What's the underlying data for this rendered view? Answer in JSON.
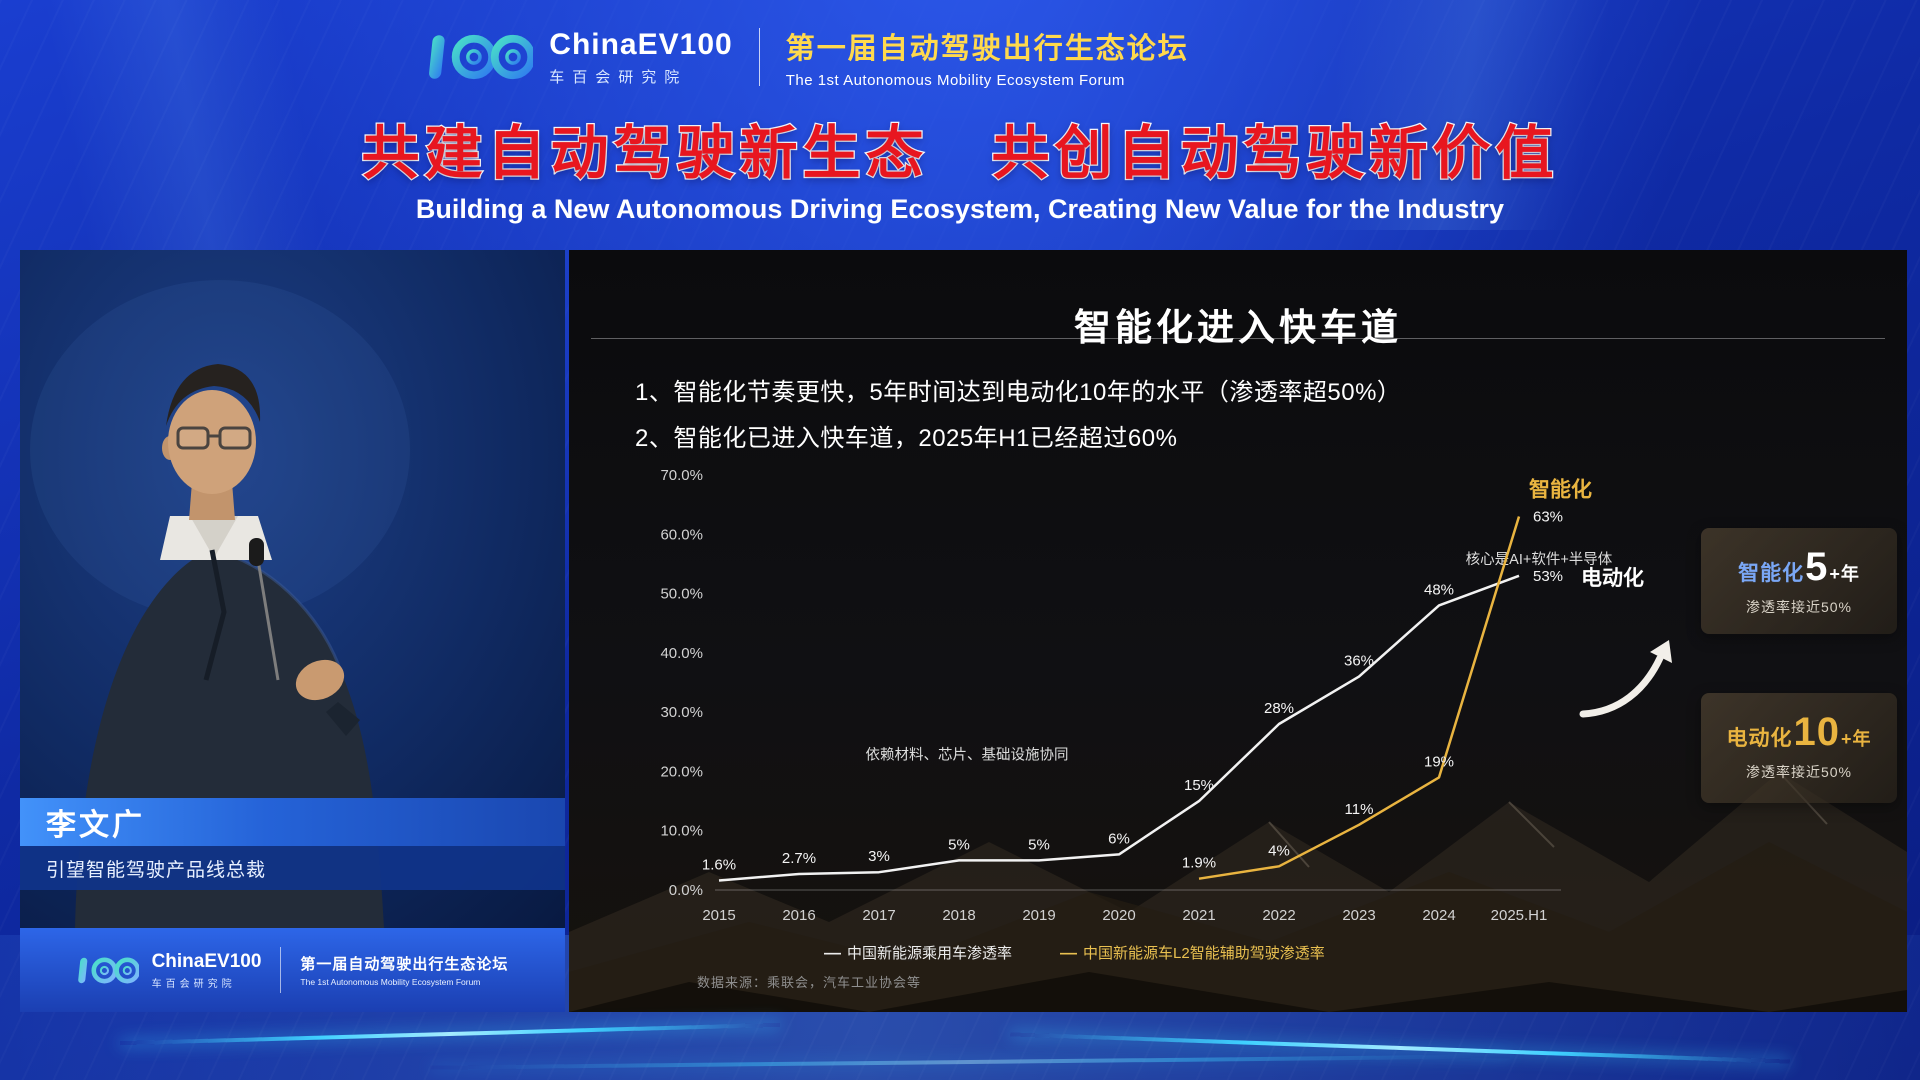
{
  "colors": {
    "title-red": "#e8161f",
    "forum-yellow": "#ffd94d",
    "ev-line": "#f2f2f2",
    "intelligent-line": "#e9b440"
  },
  "header": {
    "brand": "ChinaEV100",
    "brand_sub": "车百会研究院",
    "forum_cn": "第一届自动驾驶出行生态论坛",
    "forum_en": "The 1st Autonomous Mobility Ecosystem Forum",
    "title_cn": "共建自动驾驶新生态　共创自动驾驶新价值",
    "title_en": "Building a New Autonomous Driving Ecosystem, Creating New Value for the Industry"
  },
  "speaker": {
    "name": "李文广",
    "title": "引望智能驾驶产品线总裁"
  },
  "video_footer": {
    "brand": "ChinaEV100",
    "brand_sub": "车百会研究院",
    "forum_cn": "第一届自动驾驶出行生态论坛",
    "forum_en": "The 1st Autonomous Mobility Ecosystem Forum"
  },
  "slide": {
    "title": "智能化进入快车道",
    "bullets": [
      "1、智能化节奏更快，5年时间达到电动化10年的水平（渗透率超50%）",
      "2、智能化已进入快车道，2025年H1已经超过60%"
    ],
    "callouts": [
      {
        "prefix": "智能化",
        "big": "5",
        "suffix": "+年",
        "sub": "渗透率接近50%",
        "prefix_color": "#7aa7f5",
        "number_color": "#ffffff"
      },
      {
        "prefix": "电动化",
        "big": "10",
        "suffix": "+年",
        "sub": "渗透率接近50%",
        "prefix_color": "#e9b440",
        "number_color": "#e9b440"
      }
    ],
    "source": "数据来源：乘联会，汽车工业协会等"
  },
  "chart_data": {
    "type": "line",
    "title": "智能化进入快车道",
    "xlabel": "",
    "ylabel": "",
    "categories": [
      "2015",
      "2016",
      "2017",
      "2018",
      "2019",
      "2020",
      "2021",
      "2022",
      "2023",
      "2024",
      "2025.H1"
    ],
    "ylim": [
      0,
      70
    ],
    "ytick_step": 10,
    "grid": false,
    "legend_position": "bottom",
    "series": [
      {
        "name": "中国新能源乘用车渗透率",
        "label": "电动化",
        "color": "#f2f2f2",
        "label_color": "#ffffff",
        "name_offset": [
          62,
          9
        ],
        "values": [
          1.6,
          2.7,
          3,
          5,
          5,
          6,
          15,
          28,
          36,
          48,
          53
        ],
        "labels": [
          "1.6%",
          "2.7%",
          "3%",
          "5%",
          "5%",
          "6%",
          "15%",
          "28%",
          "36%",
          "48%",
          "53%"
        ]
      },
      {
        "name": "中国新能源车L2智能辅助驾驶渗透率",
        "label": "智能化",
        "color": "#e9b440",
        "label_color": "#e9b440",
        "name_offset": [
          10,
          -20
        ],
        "values": [
          null,
          null,
          null,
          null,
          null,
          null,
          1.9,
          4,
          11,
          19,
          63
        ],
        "labels": [
          null,
          null,
          null,
          null,
          null,
          null,
          "1.9%",
          "4%",
          "11%",
          "19%",
          "63%"
        ]
      }
    ],
    "annotations": [
      {
        "text": "依赖材料、芯片、基础设施协同",
        "x": 3.1,
        "y": 22
      },
      {
        "text": "核心是AI+软件+半导体",
        "x": 10.25,
        "y": 55
      }
    ],
    "legend": [
      {
        "marker": "—",
        "text": "中国新能源乘用车渗透率",
        "color": "#ececec"
      },
      {
        "marker": "—",
        "text": "中国新能源车L2智能辅助驾驶渗透率",
        "color": "#e9c050"
      }
    ]
  }
}
